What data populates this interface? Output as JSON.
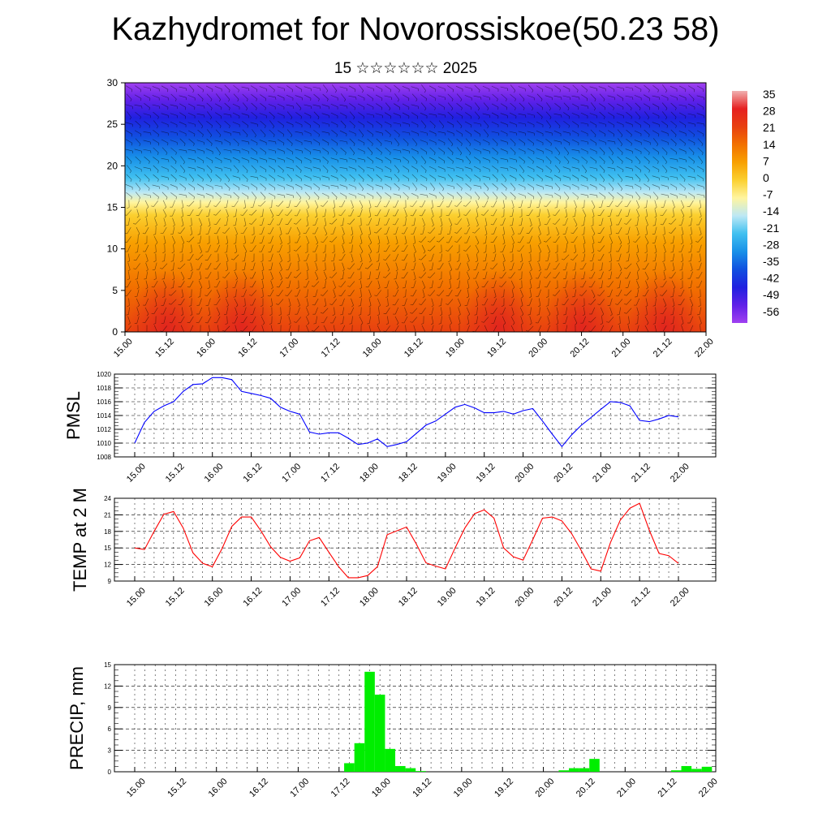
{
  "header": {
    "title": "Kazhydromet for Novorossiskoe(50.23 58)",
    "subtitle": "15 ☆☆☆☆☆☆ 2025"
  },
  "colorbar": {
    "labels": [
      "35",
      "28",
      "21",
      "14",
      "7",
      "0",
      "-7",
      "-14",
      "-21",
      "-28",
      "-35",
      "-42",
      "-49",
      "-56"
    ],
    "colors": [
      "#f0b0b0",
      "#e62020",
      "#e84010",
      "#f27000",
      "#f8a000",
      "#fbd030",
      "#fff5a0",
      "#bce8f5",
      "#40c0f0",
      "#1890e8",
      "#1050e0",
      "#2020e0",
      "#6020e8",
      "#a040f0"
    ]
  },
  "chart_data": [
    {
      "type": "heatmap",
      "name": "temperature-wind cross-section",
      "ylim": [
        0,
        30
      ],
      "yticks": [
        0,
        5,
        10,
        15,
        20,
        25,
        30
      ],
      "xtick_labels": [
        "15.00",
        "15.12",
        "16.00",
        "16.12",
        "17.00",
        "17.12",
        "18.00",
        "18.12",
        "19.00",
        "19.12",
        "20.00",
        "20.12",
        "21.00",
        "21.12",
        "22.00"
      ],
      "warm_cores_x_index": [
        1,
        2.8,
        9,
        11,
        13
      ],
      "color_scale": {
        "min": -56,
        "max": 35
      }
    },
    {
      "type": "line",
      "ylabel": "PMSL",
      "ylim": [
        1008,
        1020
      ],
      "yticks": [
        1008,
        1010,
        1012,
        1014,
        1016,
        1018,
        1020
      ],
      "color": "#0000ff",
      "xtick_labels": [
        "15.00",
        "15.12",
        "16.00",
        "16.12",
        "17.00",
        "17.12",
        "18.00",
        "18.12",
        "19.00",
        "19.12",
        "20.00",
        "20.12",
        "21.00",
        "21.12",
        "22.00"
      ],
      "x": [
        0,
        0.25,
        0.5,
        0.75,
        1,
        1.25,
        1.5,
        1.75,
        2,
        2.25,
        2.5,
        2.75,
        3,
        3.25,
        3.5,
        3.75,
        4,
        4.25,
        4.5,
        4.75,
        5,
        5.25,
        5.5,
        5.75,
        6,
        6.25,
        6.5,
        6.75,
        7,
        7.25,
        7.5,
        7.75,
        8,
        8.25,
        8.5,
        8.75,
        9,
        9.25,
        9.5,
        9.75,
        10,
        10.25,
        10.5,
        10.75,
        11,
        11.25,
        11.5,
        11.75,
        12,
        12.25,
        12.5,
        12.75,
        13,
        13.25,
        13.5,
        13.75,
        14
      ],
      "values": [
        1010,
        1013,
        1014.6,
        1015.4,
        1016,
        1017.5,
        1018.5,
        1018.6,
        1019.5,
        1019.5,
        1019.2,
        1017.5,
        1017.2,
        1016.9,
        1016.5,
        1015.2,
        1014.6,
        1014.2,
        1011.6,
        1011.3,
        1011.5,
        1011.5,
        1010.7,
        1009.8,
        1010,
        1010.6,
        1009.5,
        1009.8,
        1010.2,
        1011.4,
        1012.6,
        1013.2,
        1014.2,
        1015.2,
        1015.6,
        1015.1,
        1014.4,
        1014.4,
        1014.6,
        1014.2,
        1014.7,
        1015,
        1013.2,
        1011.3,
        1009.5,
        1011.2,
        1012.6,
        1013.7,
        1014.9,
        1016,
        1015.9,
        1015.4,
        1013.3,
        1013.1,
        1013.5,
        1014,
        1013.8
      ]
    },
    {
      "type": "line",
      "ylabel": "TEMP at 2 M",
      "ylim": [
        9,
        24
      ],
      "yticks": [
        9,
        12,
        15,
        18,
        21,
        24
      ],
      "color": "#ff0000",
      "xtick_labels": [
        "15.00",
        "15.12",
        "16.00",
        "16.12",
        "17.00",
        "17.12",
        "18.00",
        "18.12",
        "19.00",
        "19.12",
        "20.00",
        "20.12",
        "21.00",
        "21.12",
        "22.00"
      ],
      "x": [
        0,
        0.25,
        0.5,
        0.75,
        1,
        1.25,
        1.5,
        1.75,
        2,
        2.25,
        2.5,
        2.75,
        3,
        3.25,
        3.5,
        3.75,
        4,
        4.25,
        4.5,
        4.75,
        5,
        5.25,
        5.5,
        5.75,
        6,
        6.25,
        6.5,
        6.75,
        7,
        7.25,
        7.5,
        7.75,
        8,
        8.25,
        8.5,
        8.75,
        9,
        9.25,
        9.5,
        9.75,
        10,
        10.25,
        10.5,
        10.75,
        11,
        11.25,
        11.5,
        11.75,
        12,
        12.25,
        12.5,
        12.75,
        13,
        13.25,
        13.5,
        13.75,
        14
      ],
      "values": [
        15,
        14.7,
        18,
        21.1,
        21.6,
        18.6,
        14.1,
        12.2,
        11.6,
        14.9,
        18.9,
        20.6,
        20.6,
        18.1,
        15.2,
        13.3,
        12.6,
        13.2,
        16.3,
        16.9,
        14.2,
        11.6,
        9.6,
        9.6,
        10,
        11.6,
        17.4,
        18.1,
        18.8,
        15.7,
        12.3,
        11.7,
        11.2,
        15,
        18.6,
        21.2,
        21.9,
        20.4,
        15,
        13.4,
        12.8,
        16.5,
        20.4,
        20.6,
        19.9,
        17.6,
        14.5,
        11.2,
        10.8,
        16,
        20,
        22.2,
        23.1,
        18.2,
        14,
        13.6,
        12.2
      ]
    },
    {
      "type": "bar",
      "ylabel": "PRECIP, mm",
      "ylim": [
        0,
        15
      ],
      "yticks": [
        0,
        3,
        6,
        9,
        12,
        15
      ],
      "color": "#00ee00",
      "xtick_labels": [
        "15.00",
        "15.12",
        "16.00",
        "16.12",
        "17.00",
        "17.12",
        "18.00",
        "18.12",
        "19.00",
        "19.12",
        "20.00",
        "20.12",
        "21.00",
        "21.12",
        "22.00"
      ],
      "x": [
        5.25,
        5.5,
        5.75,
        6,
        6.25,
        6.5,
        6.75,
        7,
        10.5,
        10.75,
        11,
        11.25,
        13.25,
        13.5,
        13.75,
        14
      ],
      "values": [
        1.2,
        4,
        14,
        10.8,
        3.2,
        0.8,
        0.5,
        0.1,
        0.2,
        0.5,
        0.5,
        1.8,
        0.2,
        0.8,
        0.4,
        0.7
      ]
    }
  ]
}
